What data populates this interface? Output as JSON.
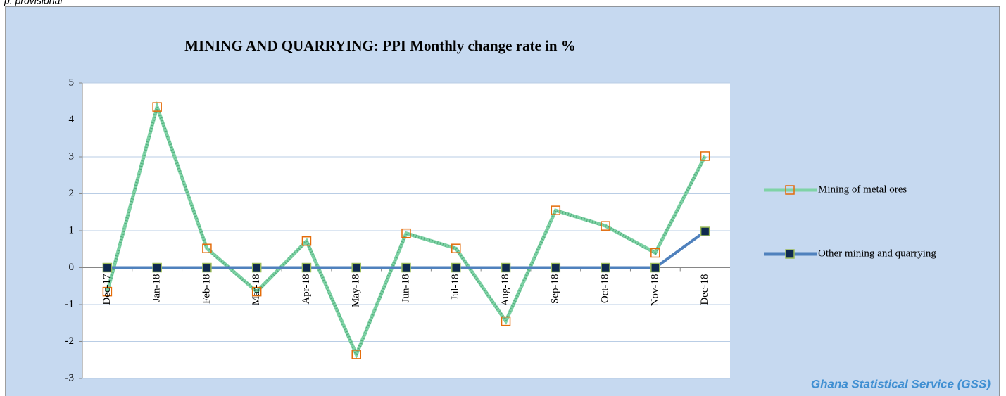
{
  "note": "p: provisional",
  "source": "Ghana Statistical Service (GSS)",
  "chart_data": {
    "type": "line",
    "title": "MINING AND QUARRYING:  PPI  Monthly change rate  in %",
    "categories": [
      "Dec-17",
      "Jan-18",
      "Feb-18",
      "Mar-18",
      "Apr-18",
      "May-18",
      "Jun-18",
      "Jul-18",
      "Aug-18",
      "Sep-18",
      "Oct-18",
      "Nov-18",
      "Dec-18"
    ],
    "series": [
      {
        "name": "Mining of metal ores",
        "color": "#7fd3a6",
        "marker_color": "#e46c0a",
        "values": [
          -0.65,
          4.35,
          0.52,
          -0.65,
          0.72,
          -2.35,
          0.93,
          0.52,
          -1.45,
          1.55,
          1.13,
          0.4,
          3.02
        ]
      },
      {
        "name": "Other mining and quarrying",
        "color": "#4f81bd",
        "marker_color": "#0f2a4f",
        "values": [
          0,
          0,
          0,
          0,
          0,
          0,
          0,
          0,
          0,
          0,
          0,
          0,
          0.98
        ]
      }
    ],
    "ylim": [
      -3,
      5
    ],
    "yticks": [
      -3,
      -2,
      -1,
      0,
      1,
      2,
      3,
      4,
      5
    ],
    "grid": true,
    "legend": "right"
  }
}
